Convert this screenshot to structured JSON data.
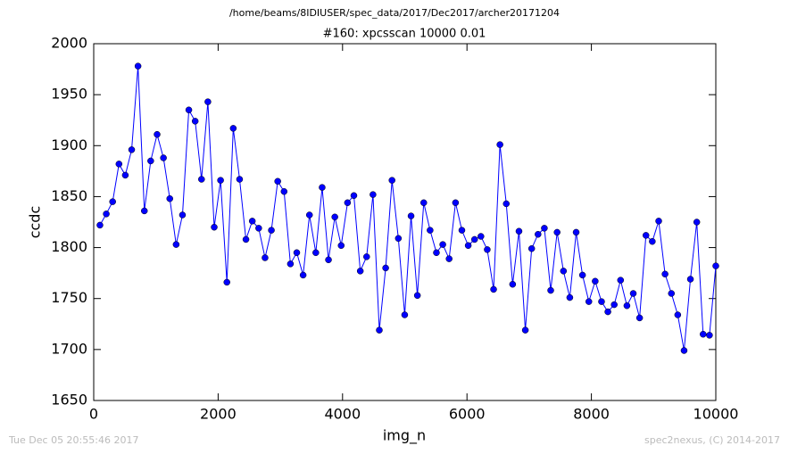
{
  "chart_data": {
    "type": "line",
    "suptitle": "/home/beams/8IDIUSER/spec_data/2017/Dec2017/archer20171204",
    "title": "#160: xpcsscan 10000 0.01",
    "xlabel": "img_n",
    "ylabel": "ccdc",
    "footer_left": "Tue Dec 05 20:55:46 2017",
    "footer_right": "spec2nexus, (C) 2014-2017",
    "color": "#0000ff",
    "marker": true,
    "grid": false,
    "xlim": [
      0,
      10000
    ],
    "ylim": [
      1650,
      2000
    ],
    "xticks": [
      0,
      2000,
      4000,
      6000,
      8000,
      10000
    ],
    "yticks": [
      1650,
      1700,
      1750,
      1800,
      1850,
      1900,
      1950,
      2000
    ],
    "x": [
      100,
      202,
      304,
      406,
      508,
      610,
      712,
      814,
      916,
      1019,
      1121,
      1223,
      1325,
      1427,
      1529,
      1631,
      1733,
      1835,
      1937,
      2039,
      2141,
      2243,
      2345,
      2447,
      2549,
      2652,
      2754,
      2856,
      2958,
      3060,
      3162,
      3264,
      3366,
      3468,
      3570,
      3672,
      3774,
      3876,
      3978,
      4080,
      4182,
      4285,
      4387,
      4489,
      4591,
      4693,
      4795,
      4897,
      4999,
      5101,
      5203,
      5305,
      5407,
      5509,
      5611,
      5713,
      5816,
      5918,
      6020,
      6122,
      6224,
      6326,
      6428,
      6530,
      6632,
      6734,
      6836,
      6938,
      7040,
      7142,
      7244,
      7346,
      7449,
      7551,
      7653,
      7755,
      7857,
      7959,
      8061,
      8163,
      8265,
      8367,
      8469,
      8571,
      8673,
      8775,
      8877,
      8979,
      9082,
      9184,
      9286,
      9388,
      9490,
      9592,
      9694,
      9796,
      9898,
      10000
    ],
    "values": [
      1822,
      1833,
      1845,
      1882,
      1871,
      1896,
      1978,
      1836,
      1885,
      1911,
      1888,
      1848,
      1803,
      1832,
      1935,
      1924,
      1867,
      1943,
      1820,
      1866,
      1766,
      1917,
      1867,
      1808,
      1826,
      1819,
      1790,
      1817,
      1865,
      1855,
      1784,
      1795,
      1773,
      1832,
      1795,
      1859,
      1788,
      1830,
      1802,
      1844,
      1851,
      1777,
      1791,
      1852,
      1719,
      1780,
      1866,
      1809,
      1734,
      1831,
      1753,
      1844,
      1817,
      1795,
      1803,
      1789,
      1844,
      1817,
      1802,
      1808,
      1811,
      1798,
      1759,
      1901,
      1843,
      1764,
      1816,
      1719,
      1799,
      1813,
      1819,
      1758,
      1815,
      1777,
      1751,
      1815,
      1773,
      1747,
      1767,
      1747,
      1737,
      1744,
      1768,
      1743,
      1755,
      1731,
      1812,
      1806,
      1826,
      1774,
      1755,
      1734,
      1699,
      1769,
      1825,
      1715,
      1714,
      1782
    ]
  }
}
